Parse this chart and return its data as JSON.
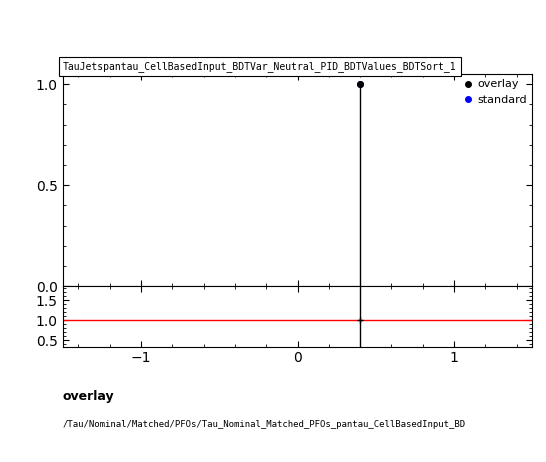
{
  "title": "TauJetspantau_CellBasedInput_BDTVar_Neutral_PID_BDTValues_BDTSort_1",
  "main_xlim": [
    -1.5,
    1.5
  ],
  "main_ylim": [
    0,
    1.05
  ],
  "ratio_ylim": [
    0.35,
    1.85
  ],
  "ratio_yticks": [
    0.5,
    1.0,
    1.5
  ],
  "main_yticks": [
    0,
    0.5,
    1.0
  ],
  "x_ticks": [
    -1,
    0,
    1
  ],
  "vertical_line_x": 0.4,
  "overlay_color": "#000000",
  "standard_color": "#0000ff",
  "ratio_line_color": "#ff0000",
  "legend_labels": [
    "overlay",
    "standard"
  ],
  "footer_line1": "overlay",
  "footer_line2": "/Tau/Nominal/Matched/PFOs/Tau_Nominal_Matched_PFOs_pantau_CellBasedInput_BD"
}
